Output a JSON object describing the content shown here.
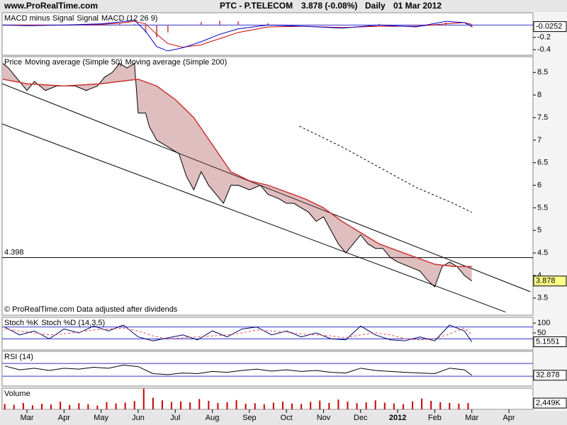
{
  "header": {
    "site": "www.ProRealTime.com",
    "title": "PTC - P.TELECOM",
    "quote": "3.878 (-0.08%)",
    "period": "Daily",
    "date": "01 Mar 2012"
  },
  "x_axis": {
    "xlim": [
      1.33,
      15.65
    ],
    "xticks": [
      {
        "value": 2,
        "label": "Mar"
      },
      {
        "value": 3,
        "label": "Apr"
      },
      {
        "value": 4,
        "label": "May"
      },
      {
        "value": 5,
        "label": "Jun"
      },
      {
        "value": 6,
        "label": "Jul"
      },
      {
        "value": 7,
        "label": "Aug"
      },
      {
        "value": 8,
        "label": "Sep"
      },
      {
        "value": 9,
        "label": "Oct"
      },
      {
        "value": 10,
        "label": "Nov"
      },
      {
        "value": 11,
        "label": "Dec"
      },
      {
        "value": 12,
        "label": "2012"
      },
      {
        "value": 13,
        "label": "Feb"
      },
      {
        "value": 14,
        "label": "Mar"
      },
      {
        "value": 15,
        "label": "Apr"
      }
    ]
  },
  "chart_data": [
    {
      "type": "line",
      "ylim": [
        -0.49,
        0.2
      ],
      "yticks": [
        -0.2,
        -0.4
      ],
      "hlines": [
        0
      ],
      "last": -0.0252,
      "series": [
        {
          "name": "MACD minus Signal",
          "color": "#cc6666",
          "style": "bars",
          "x": [
            1.35,
            2,
            3,
            4,
            4.5,
            4.9,
            5.2,
            5.5,
            5.8,
            6.2,
            6.7,
            7.2,
            7.7,
            8.5,
            9.5,
            10.5,
            11.5,
            12.5,
            13.3,
            13.8,
            14.0
          ],
          "values": [
            0,
            -0.01,
            0,
            0.01,
            0.02,
            0.02,
            -0.12,
            -0.2,
            -0.12,
            -0.01,
            0.05,
            0.07,
            0.06,
            0.03,
            0,
            -0.01,
            0.02,
            -0.01,
            0.04,
            0,
            -0.035
          ]
        },
        {
          "name": "Signal",
          "color": "#cc0000",
          "style": "line",
          "x": [
            1.35,
            2,
            3,
            4,
            4.5,
            4.9,
            5.2,
            5.5,
            5.8,
            6.2,
            6.7,
            7.2,
            7.7,
            8.5,
            9.5,
            10.5,
            11.5,
            12.5,
            13.3,
            13.8,
            14.0
          ],
          "values": [
            0,
            0,
            0,
            0.01,
            0.03,
            0.06,
            0.02,
            -0.15,
            -0.3,
            -0.36,
            -0.32,
            -0.22,
            -0.12,
            -0.03,
            -0.02,
            -0.04,
            -0.02,
            -0.02,
            0.02,
            0.04,
            0.01
          ]
        },
        {
          "name": "MACD (12 26 9)",
          "color": "#0000cc",
          "style": "line",
          "x": [
            1.35,
            2,
            3,
            4,
            4.5,
            4.9,
            5.2,
            5.5,
            5.8,
            6.2,
            6.7,
            7.2,
            7.7,
            8.5,
            9.5,
            10.5,
            11.5,
            12.5,
            13.3,
            13.8,
            14.0
          ],
          "values": [
            0,
            -0.01,
            0,
            0.02,
            0.05,
            0.08,
            -0.1,
            -0.35,
            -0.42,
            -0.37,
            -0.27,
            -0.15,
            -0.06,
            0,
            -0.02,
            -0.05,
            0,
            -0.03,
            0.06,
            0.04,
            -0.0252
          ]
        }
      ]
    },
    {
      "type": "line",
      "ylim": [
        3.12,
        8.85
      ],
      "yticks": [
        3.5,
        4,
        4.5,
        5,
        5.5,
        6,
        6.5,
        7,
        7.5,
        8,
        8.5
      ],
      "hlines": [
        4.398
      ],
      "hline_label": true,
      "last": 3.878,
      "note": "© ProRealTime.com  Data adjusted after dividends",
      "trend_lines": [
        {
          "x": [
            1.33,
            15.58
          ],
          "values": [
            8.25,
            3.64
          ]
        },
        {
          "x": [
            1.33,
            14.91
          ],
          "values": [
            7.36,
            3.19
          ]
        }
      ],
      "series": [
        {
          "name": "Price",
          "color": "#000000",
          "style": "line",
          "x": [
            1.35,
            1.5,
            1.7,
            1.9,
            2.0,
            2.2,
            2.5,
            2.8,
            3.0,
            3.3,
            3.6,
            3.9,
            4.1,
            4.3,
            4.5,
            4.7,
            4.9,
            5.0,
            5.2,
            5.3,
            5.5,
            5.7,
            5.9,
            6.1,
            6.3,
            6.5,
            6.7,
            6.9,
            7.1,
            7.3,
            7.5,
            7.7,
            8.0,
            8.3,
            8.5,
            8.8,
            9.0,
            9.2,
            9.4,
            9.6,
            9.8,
            10.0,
            10.2,
            10.4,
            10.6,
            10.8,
            11.0,
            11.2,
            11.4,
            11.6,
            11.8,
            12.0,
            12.3,
            12.6,
            12.8,
            13.0,
            13.2,
            13.4,
            13.6,
            13.8,
            14.0
          ],
          "values": [
            8.7,
            8.6,
            8.4,
            8.2,
            8.1,
            8.3,
            8.1,
            8.2,
            8.2,
            8.2,
            8.1,
            8.2,
            8.4,
            8.5,
            8.7,
            8.6,
            8.7,
            7.6,
            7.6,
            7.3,
            7.0,
            6.9,
            6.8,
            6.7,
            6.2,
            5.9,
            6.3,
            6.0,
            5.8,
            5.6,
            6.0,
            6.0,
            5.9,
            6.0,
            5.8,
            5.7,
            5.6,
            5.6,
            5.5,
            5.4,
            5.2,
            5.3,
            5.0,
            4.7,
            4.5,
            4.7,
            4.9,
            4.7,
            4.6,
            4.6,
            4.4,
            4.3,
            4.2,
            4.1,
            3.9,
            3.75,
            4.2,
            4.3,
            4.2,
            4.0,
            3.878
          ]
        },
        {
          "name": "Moving average (Simple 50)",
          "color": "#cc3333",
          "style": "area",
          "x": [
            1.35,
            2,
            3,
            4,
            4.5,
            5.0,
            5.5,
            6.0,
            6.5,
            7.0,
            7.5,
            8.0,
            8.5,
            9.0,
            9.5,
            10.0,
            10.5,
            11.0,
            11.5,
            12.0,
            12.5,
            13.0,
            13.5,
            14.0
          ],
          "values": [
            8.35,
            8.25,
            8.2,
            8.25,
            8.3,
            8.35,
            8.2,
            7.9,
            7.5,
            6.9,
            6.3,
            6.1,
            6.0,
            5.85,
            5.7,
            5.5,
            5.2,
            4.95,
            4.7,
            4.55,
            4.4,
            4.25,
            4.2,
            4.2
          ]
        },
        {
          "name": "Moving average (Simple 200)",
          "color": "#000000",
          "style": "dashed",
          "x": [
            9.35,
            10.5,
            11.5,
            12.5,
            13.5,
            14.0
          ],
          "values": [
            7.31,
            6.85,
            6.4,
            5.95,
            5.6,
            5.4
          ]
        }
      ]
    },
    {
      "type": "line",
      "ylim": [
        -36,
        129
      ],
      "yticks": [
        100,
        50
      ],
      "hlines": [
        80,
        20
      ],
      "last": 5.1551,
      "series": [
        {
          "name": "Stoch %K",
          "color": "#000066",
          "style": "line",
          "x": [
            1.4,
            1.8,
            2.2,
            2.6,
            3.0,
            3.4,
            3.8,
            4.2,
            4.6,
            5.0,
            5.4,
            5.8,
            6.2,
            6.6,
            7.0,
            7.4,
            7.8,
            8.2,
            8.6,
            9.0,
            9.4,
            9.8,
            10.2,
            10.6,
            11.0,
            11.4,
            11.8,
            12.2,
            12.6,
            13.0,
            13.4,
            13.8,
            14.0
          ],
          "values": [
            80,
            40,
            60,
            20,
            70,
            50,
            85,
            60,
            90,
            30,
            10,
            25,
            40,
            15,
            60,
            30,
            70,
            80,
            40,
            60,
            30,
            50,
            20,
            15,
            85,
            40,
            15,
            10,
            30,
            10,
            90,
            60,
            5.1551
          ]
        },
        {
          "name": "Stoch %D (14,3,5)",
          "color": "#dd4444",
          "style": "dashed",
          "x": [
            1.4,
            1.8,
            2.2,
            2.6,
            3.0,
            3.4,
            3.8,
            4.2,
            4.6,
            5.0,
            5.4,
            5.8,
            6.2,
            6.6,
            7.0,
            7.4,
            7.8,
            8.2,
            8.6,
            9.0,
            9.4,
            9.8,
            10.2,
            10.6,
            11.0,
            11.4,
            11.8,
            12.2,
            12.6,
            13.0,
            13.4,
            13.8,
            14.0
          ],
          "values": [
            70,
            60,
            50,
            40,
            45,
            55,
            65,
            70,
            75,
            60,
            35,
            20,
            25,
            30,
            35,
            40,
            50,
            65,
            60,
            55,
            45,
            40,
            35,
            25,
            40,
            50,
            40,
            20,
            15,
            20,
            45,
            75,
            40
          ]
        }
      ]
    },
    {
      "type": "line",
      "ylim": [
        -1,
        108
      ],
      "hlines": [
        70,
        30
      ],
      "last": 32.878,
      "series": [
        {
          "name": "RSI (14)",
          "color": "#000000",
          "style": "line",
          "x": [
            1.4,
            1.8,
            2.2,
            2.6,
            3.0,
            3.4,
            3.8,
            4.2,
            4.6,
            5.0,
            5.4,
            5.8,
            6.2,
            6.6,
            7.0,
            7.4,
            7.8,
            8.2,
            8.6,
            9.0,
            9.4,
            9.8,
            10.2,
            10.6,
            11.0,
            11.4,
            11.8,
            12.2,
            12.6,
            13.0,
            13.4,
            13.8,
            14.0
          ],
          "values": [
            62,
            50,
            55,
            48,
            55,
            52,
            58,
            55,
            65,
            60,
            38,
            35,
            40,
            38,
            45,
            42,
            48,
            52,
            46,
            50,
            45,
            48,
            42,
            40,
            55,
            48,
            45,
            42,
            40,
            38,
            55,
            50,
            32.878
          ]
        }
      ]
    },
    {
      "type": "bar",
      "ylim": [
        0,
        8200
      ],
      "last": {
        "value": 2449,
        "label": "2,449K"
      },
      "series": [
        {
          "name": "Volume",
          "color": "#cc0000",
          "style": "bars",
          "x": [
            1.4,
            1.65,
            1.9,
            2.15,
            2.4,
            2.65,
            2.9,
            3.15,
            3.4,
            3.65,
            3.9,
            4.15,
            4.4,
            4.65,
            4.9,
            5.15,
            5.4,
            5.65,
            5.9,
            6.15,
            6.4,
            6.65,
            6.9,
            7.15,
            7.4,
            7.65,
            7.9,
            8.15,
            8.4,
            8.65,
            8.9,
            9.15,
            9.4,
            9.65,
            9.9,
            10.15,
            10.4,
            10.65,
            10.9,
            11.15,
            11.4,
            11.65,
            11.9,
            12.15,
            12.4,
            12.65,
            12.9,
            13.15,
            13.4,
            13.65,
            13.9
          ],
          "values": [
            2100,
            1800,
            2500,
            1600,
            2200,
            1900,
            3000,
            1700,
            2400,
            2000,
            1500,
            2800,
            2300,
            2600,
            3200,
            8000,
            4500,
            3500,
            2900,
            3100,
            2700,
            4000,
            3300,
            2500,
            2800,
            3600,
            2200,
            2400,
            2000,
            2600,
            3000,
            2300,
            2100,
            2900,
            3400,
            2500,
            3800,
            3000,
            2400,
            2700,
            3500,
            2600,
            2300,
            2000,
            3100,
            4200,
            3300,
            2800,
            2500,
            2200,
            2449
          ]
        }
      ]
    }
  ]
}
